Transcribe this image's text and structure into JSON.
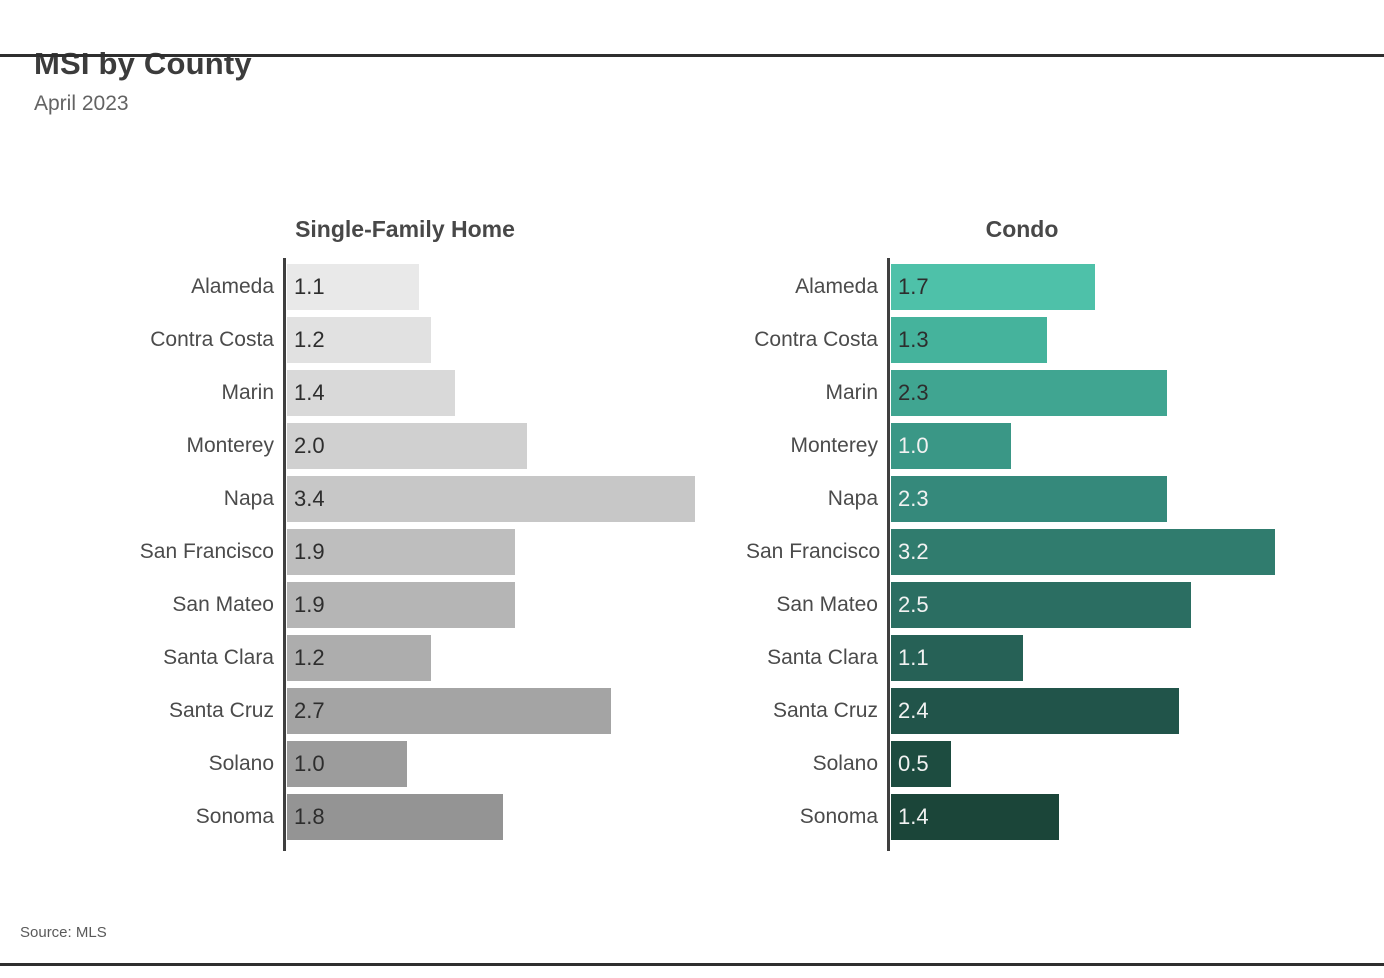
{
  "header": {
    "title": "MSI by County",
    "subtitle": "April 2023"
  },
  "footer": {
    "source": "Source:  MLS"
  },
  "chart_data": {
    "type": "bar",
    "orientation": "horizontal",
    "title": "MSI by County",
    "subtitle": "April 2023",
    "source": "MLS",
    "categories": [
      "Alameda",
      "Contra Costa",
      "Marin",
      "Monterey",
      "Napa",
      "San Francisco",
      "San Mateo",
      "Santa Clara",
      "Santa Cruz",
      "Solano",
      "Sonoma"
    ],
    "series": [
      {
        "name": "Single-Family Home",
        "values": [
          1.1,
          1.2,
          1.4,
          2.0,
          3.4,
          1.9,
          1.9,
          1.2,
          2.7,
          1.0,
          1.8
        ]
      },
      {
        "name": "Condo",
        "values": [
          1.7,
          1.3,
          2.3,
          1.0,
          2.3,
          3.2,
          2.5,
          1.1,
          2.4,
          0.5,
          1.4
        ]
      }
    ],
    "xlim": [
      0,
      4.0
    ],
    "value_labels_inside_bars": true,
    "grid": false,
    "legend": "none",
    "axis_color": "#3f3f3f",
    "palettes": {
      "single_family": [
        "#e9e9e9",
        "#e1e1e1",
        "#d9d9d9",
        "#d0d0d0",
        "#c7c7c7",
        "#bebebe",
        "#b5b5b5",
        "#adadad",
        "#a4a4a4",
        "#9c9c9c",
        "#949494"
      ],
      "condo": [
        "#4ec1a9",
        "#45b39c",
        "#40a591",
        "#3a9786",
        "#35897b",
        "#307c6e",
        "#2b6e62",
        "#266156",
        "#21544a",
        "#1d4c40",
        "#1b4539"
      ]
    },
    "value_text_dark": "#2d2d2d",
    "value_text_light": "#f2f2f2"
  }
}
